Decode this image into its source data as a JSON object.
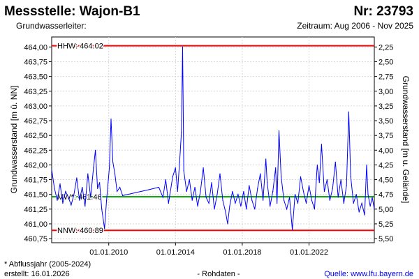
{
  "header": {
    "title": "Messstelle: Wajon-B1",
    "number": "Nr: 23793",
    "subtitle_left": "Grundwasserleiter:",
    "subtitle_right": "Zeitraum: Aug 2006 - Nov 2025"
  },
  "footer": {
    "note": "* Abflussjahr (2005-2024)",
    "created": "erstellt:  16.01.2026",
    "raw_label": "- Rohdaten -",
    "source": "Quelle: www.lfu.bayern.de",
    "source_color": "#0000ee"
  },
  "chart_data": {
    "type": "line",
    "ylabel": "Grundwasserstand [m ü. NN]",
    "y2label": "Grundwasserstand [m u. Gelände]",
    "ylim": [
      460.68,
      464.17
    ],
    "yticks": [
      464.0,
      463.75,
      463.5,
      463.25,
      463.0,
      462.75,
      462.5,
      462.25,
      462.0,
      461.75,
      461.5,
      461.25,
      461.0,
      460.75
    ],
    "ytick_labels": [
      "464,00",
      "463,75",
      "463,50",
      "463,25",
      "463,00",
      "462,75",
      "462,50",
      "462,25",
      "462,00",
      "461,75",
      "461,50",
      "461,25",
      "461,00",
      "460,75"
    ],
    "y2ticks": [
      2.25,
      2.5,
      2.75,
      3.0,
      3.25,
      3.5,
      3.75,
      4.0,
      4.25,
      4.5,
      4.75,
      5.0,
      5.25,
      5.5
    ],
    "y2tick_labels": [
      "2,25",
      "2,50",
      "2,75",
      "3,00",
      "3,25",
      "3,50",
      "3,75",
      "4,00",
      "4,25",
      "4,50",
      "4,75",
      "5,00",
      "5,25",
      "5,50"
    ],
    "x_start": "2006-08-01",
    "x_end": "2025-11-30",
    "xticks": [
      "2010-01-01",
      "2014-01-01",
      "2018-01-01",
      "2022-01-01"
    ],
    "xtick_labels": [
      "01.01.2010",
      "01.01.2014",
      "01.01.2018",
      "01.01.2022"
    ],
    "grid": true,
    "reference_lines": [
      {
        "label": "HHW: 464.02",
        "value": 464.02,
        "color": "#ff0000"
      },
      {
        "label": "MW*: 461.46",
        "value": 461.46,
        "color": "#009900"
      },
      {
        "label": "NNW: 460.89",
        "value": 460.89,
        "color": "#ff0000"
      }
    ],
    "series": [
      {
        "color": "#0000ff",
        "points": [
          [
            "2006-08-01",
            461.92
          ],
          [
            "2006-10-01",
            461.6
          ],
          [
            "2006-12-01",
            461.4
          ],
          [
            "2007-02-01",
            461.68
          ],
          [
            "2007-04-01",
            461.35
          ],
          [
            "2007-06-01",
            461.55
          ],
          [
            "2007-08-01",
            461.45
          ],
          [
            "2007-10-01",
            461.32
          ],
          [
            "2007-12-01",
            461.5
          ],
          [
            "2008-02-01",
            461.78
          ],
          [
            "2008-04-01",
            461.4
          ],
          [
            "2008-06-01",
            461.62
          ],
          [
            "2008-08-01",
            461.3
          ],
          [
            "2008-10-01",
            461.85
          ],
          [
            "2008-12-01",
            461.45
          ],
          [
            "2009-02-01",
            461.95
          ],
          [
            "2009-03-15",
            462.25
          ],
          [
            "2009-05-01",
            461.6
          ],
          [
            "2009-06-15",
            461.7
          ],
          [
            "2009-08-01",
            461.25
          ],
          [
            "2009-10-01",
            460.92
          ],
          [
            "2009-11-15",
            461.4
          ],
          [
            "2010-01-15",
            461.95
          ],
          [
            "2010-02-20",
            462.78
          ],
          [
            "2010-04-01",
            462.05
          ],
          [
            "2010-05-15",
            461.85
          ],
          [
            "2010-07-01",
            461.55
          ],
          [
            "2010-09-01",
            461.62
          ],
          [
            "2010-11-01",
            461.48
          ],
          [
            "2012-06-01",
            461.58
          ],
          [
            "2013-01-01",
            461.62
          ],
          [
            "2013-04-01",
            461.45
          ],
          [
            "2013-06-01",
            461.75
          ],
          [
            "2013-08-01",
            461.35
          ],
          [
            "2013-11-01",
            461.8
          ],
          [
            "2014-01-01",
            461.95
          ],
          [
            "2014-02-15",
            461.55
          ],
          [
            "2014-04-01",
            462.05
          ],
          [
            "2014-05-10",
            462.55
          ],
          [
            "2014-06-05",
            464.0
          ],
          [
            "2014-07-01",
            461.9
          ],
          [
            "2014-09-01",
            461.55
          ],
          [
            "2014-11-01",
            461.75
          ],
          [
            "2015-01-01",
            461.4
          ],
          [
            "2015-03-01",
            461.62
          ],
          [
            "2015-05-01",
            461.3
          ],
          [
            "2015-07-01",
            461.55
          ],
          [
            "2015-09-01",
            461.95
          ],
          [
            "2015-11-01",
            461.45
          ],
          [
            "2016-01-01",
            461.35
          ],
          [
            "2016-03-01",
            461.7
          ],
          [
            "2016-05-01",
            461.25
          ],
          [
            "2016-07-01",
            461.5
          ],
          [
            "2016-09-01",
            461.85
          ],
          [
            "2016-11-01",
            461.4
          ],
          [
            "2017-01-01",
            461.2
          ],
          [
            "2017-02-15",
            461.0
          ],
          [
            "2017-04-01",
            461.3
          ],
          [
            "2017-06-01",
            461.55
          ],
          [
            "2017-08-01",
            461.35
          ],
          [
            "2017-10-01",
            461.5
          ],
          [
            "2017-12-01",
            461.3
          ],
          [
            "2018-02-01",
            461.55
          ],
          [
            "2018-04-01",
            461.25
          ],
          [
            "2018-06-01",
            461.65
          ],
          [
            "2018-08-01",
            461.4
          ],
          [
            "2018-10-01",
            461.25
          ],
          [
            "2018-12-01",
            461.6
          ],
          [
            "2019-02-01",
            461.85
          ],
          [
            "2019-04-01",
            461.4
          ],
          [
            "2019-06-01",
            462.1
          ],
          [
            "2019-07-01",
            461.7
          ],
          [
            "2019-09-01",
            461.3
          ],
          [
            "2019-11-01",
            461.55
          ],
          [
            "2020-01-01",
            461.95
          ],
          [
            "2020-02-01",
            461.35
          ],
          [
            "2020-03-15",
            462.58
          ],
          [
            "2020-05-01",
            461.8
          ],
          [
            "2020-07-01",
            461.4
          ],
          [
            "2020-09-01",
            461.25
          ],
          [
            "2020-11-01",
            461.45
          ],
          [
            "2021-01-01",
            460.9
          ],
          [
            "2021-03-01",
            461.5
          ],
          [
            "2021-05-01",
            461.35
          ],
          [
            "2021-07-01",
            461.8
          ],
          [
            "2021-09-01",
            461.55
          ],
          [
            "2021-11-01",
            461.35
          ],
          [
            "2022-01-01",
            461.65
          ],
          [
            "2022-03-01",
            461.4
          ],
          [
            "2022-05-01",
            461.25
          ],
          [
            "2022-07-01",
            462.0
          ],
          [
            "2022-08-15",
            461.7
          ],
          [
            "2022-10-01",
            462.35
          ],
          [
            "2022-12-01",
            461.55
          ],
          [
            "2023-02-01",
            461.75
          ],
          [
            "2023-04-01",
            461.4
          ],
          [
            "2023-06-01",
            461.6
          ],
          [
            "2023-08-01",
            462.05
          ],
          [
            "2023-10-01",
            461.45
          ],
          [
            "2023-12-01",
            461.75
          ],
          [
            "2024-02-01",
            461.35
          ],
          [
            "2024-04-01",
            461.65
          ],
          [
            "2024-05-20",
            462.9
          ],
          [
            "2024-07-01",
            461.8
          ],
          [
            "2024-09-01",
            461.35
          ],
          [
            "2024-11-01",
            461.5
          ],
          [
            "2025-01-01",
            461.2
          ],
          [
            "2025-03-01",
            461.35
          ],
          [
            "2025-05-01",
            461.15
          ],
          [
            "2025-06-15",
            462.0
          ],
          [
            "2025-07-15",
            461.5
          ],
          [
            "2025-09-01",
            461.3
          ],
          [
            "2025-10-15",
            461.45
          ],
          [
            "2025-11-30",
            461.25
          ]
        ]
      }
    ]
  }
}
